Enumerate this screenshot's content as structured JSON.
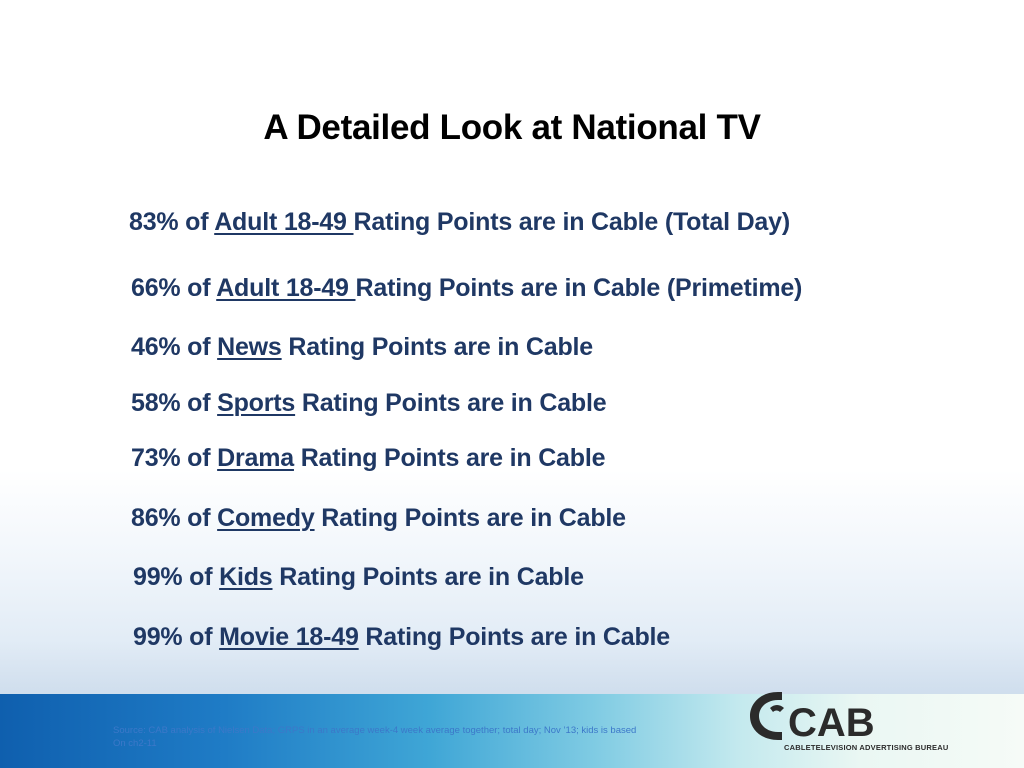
{
  "slide": {
    "title": "A Detailed Look at National TV",
    "stats": [
      {
        "prefix": "83% of ",
        "category": "Adult 18-49 ",
        "suffix": "Rating Points are in Cable (Total Day)"
      },
      {
        "prefix": "66% of ",
        "category": "Adult 18-49 ",
        "suffix": "Rating Points are in Cable  (Primetime)"
      },
      {
        "prefix": "46% of ",
        "category": "News",
        "suffix": " Rating Points are in Cable"
      },
      {
        "prefix": "58% of ",
        "category": "Sports",
        "suffix": " Rating Points are in Cable"
      },
      {
        "prefix": "73% of ",
        "category": "Drama",
        "suffix": " Rating Points are in Cable"
      },
      {
        "prefix": "86% of ",
        "category": "Comedy",
        "suffix": " Rating Points are in Cable"
      },
      {
        "prefix": "99% of ",
        "category": "Kids",
        "suffix": " Rating Points are in Cable"
      },
      {
        "prefix": "99% of ",
        "category": "Movie 18-49",
        "suffix": " Rating Points are in Cable"
      }
    ],
    "source_line1": "Source:   CAB analysis of Nielsen Data; GRPS in an average week-4 week average together; total day; Nov ’13; kids is based",
    "source_line2": "On ch2-11"
  },
  "logo": {
    "text": "CAB",
    "caption": "CABLETELEVISION ADVERTISING BUREAU",
    "colors": {
      "mark": "#2b2b2b"
    }
  },
  "colors": {
    "title": "#000000",
    "stat_text": "#1f3864",
    "source_text": "#3c78c9",
    "footer_band_start": "#0f5fae",
    "footer_band_end": "#f6fbf7"
  }
}
